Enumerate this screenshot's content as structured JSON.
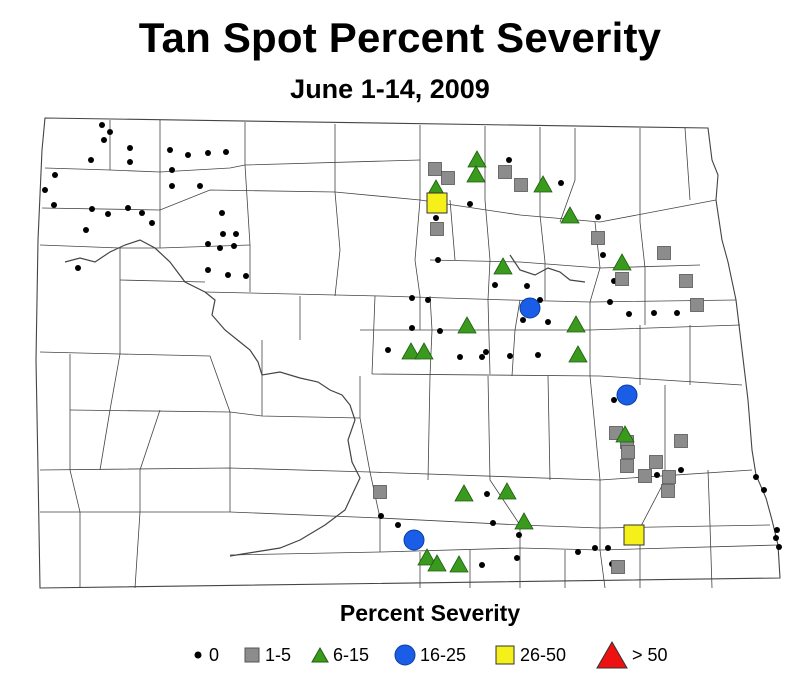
{
  "title": "Tan Spot Percent Severity",
  "subtitle": "June 1-14, 2009",
  "legend": {
    "title": "Percent Severity",
    "items": [
      {
        "label": "0",
        "symbol": "dot",
        "color": "#000000"
      },
      {
        "label": "1-5",
        "symbol": "square",
        "color": "#8c8c8c"
      },
      {
        "label": "6-15",
        "symbol": "triangle",
        "color": "#3a9a1e"
      },
      {
        "label": "16-25",
        "symbol": "circle",
        "color": "#1a5ee8"
      },
      {
        "label": "26-50",
        "symbol": "square",
        "color": "#f5f01a"
      },
      {
        "label": "> 50",
        "symbol": "triangle",
        "color": "#ee1111"
      }
    ]
  },
  "colors": {
    "map_background": "#ffffff",
    "county_lines": "#444444",
    "rivers": "#444444"
  }
}
